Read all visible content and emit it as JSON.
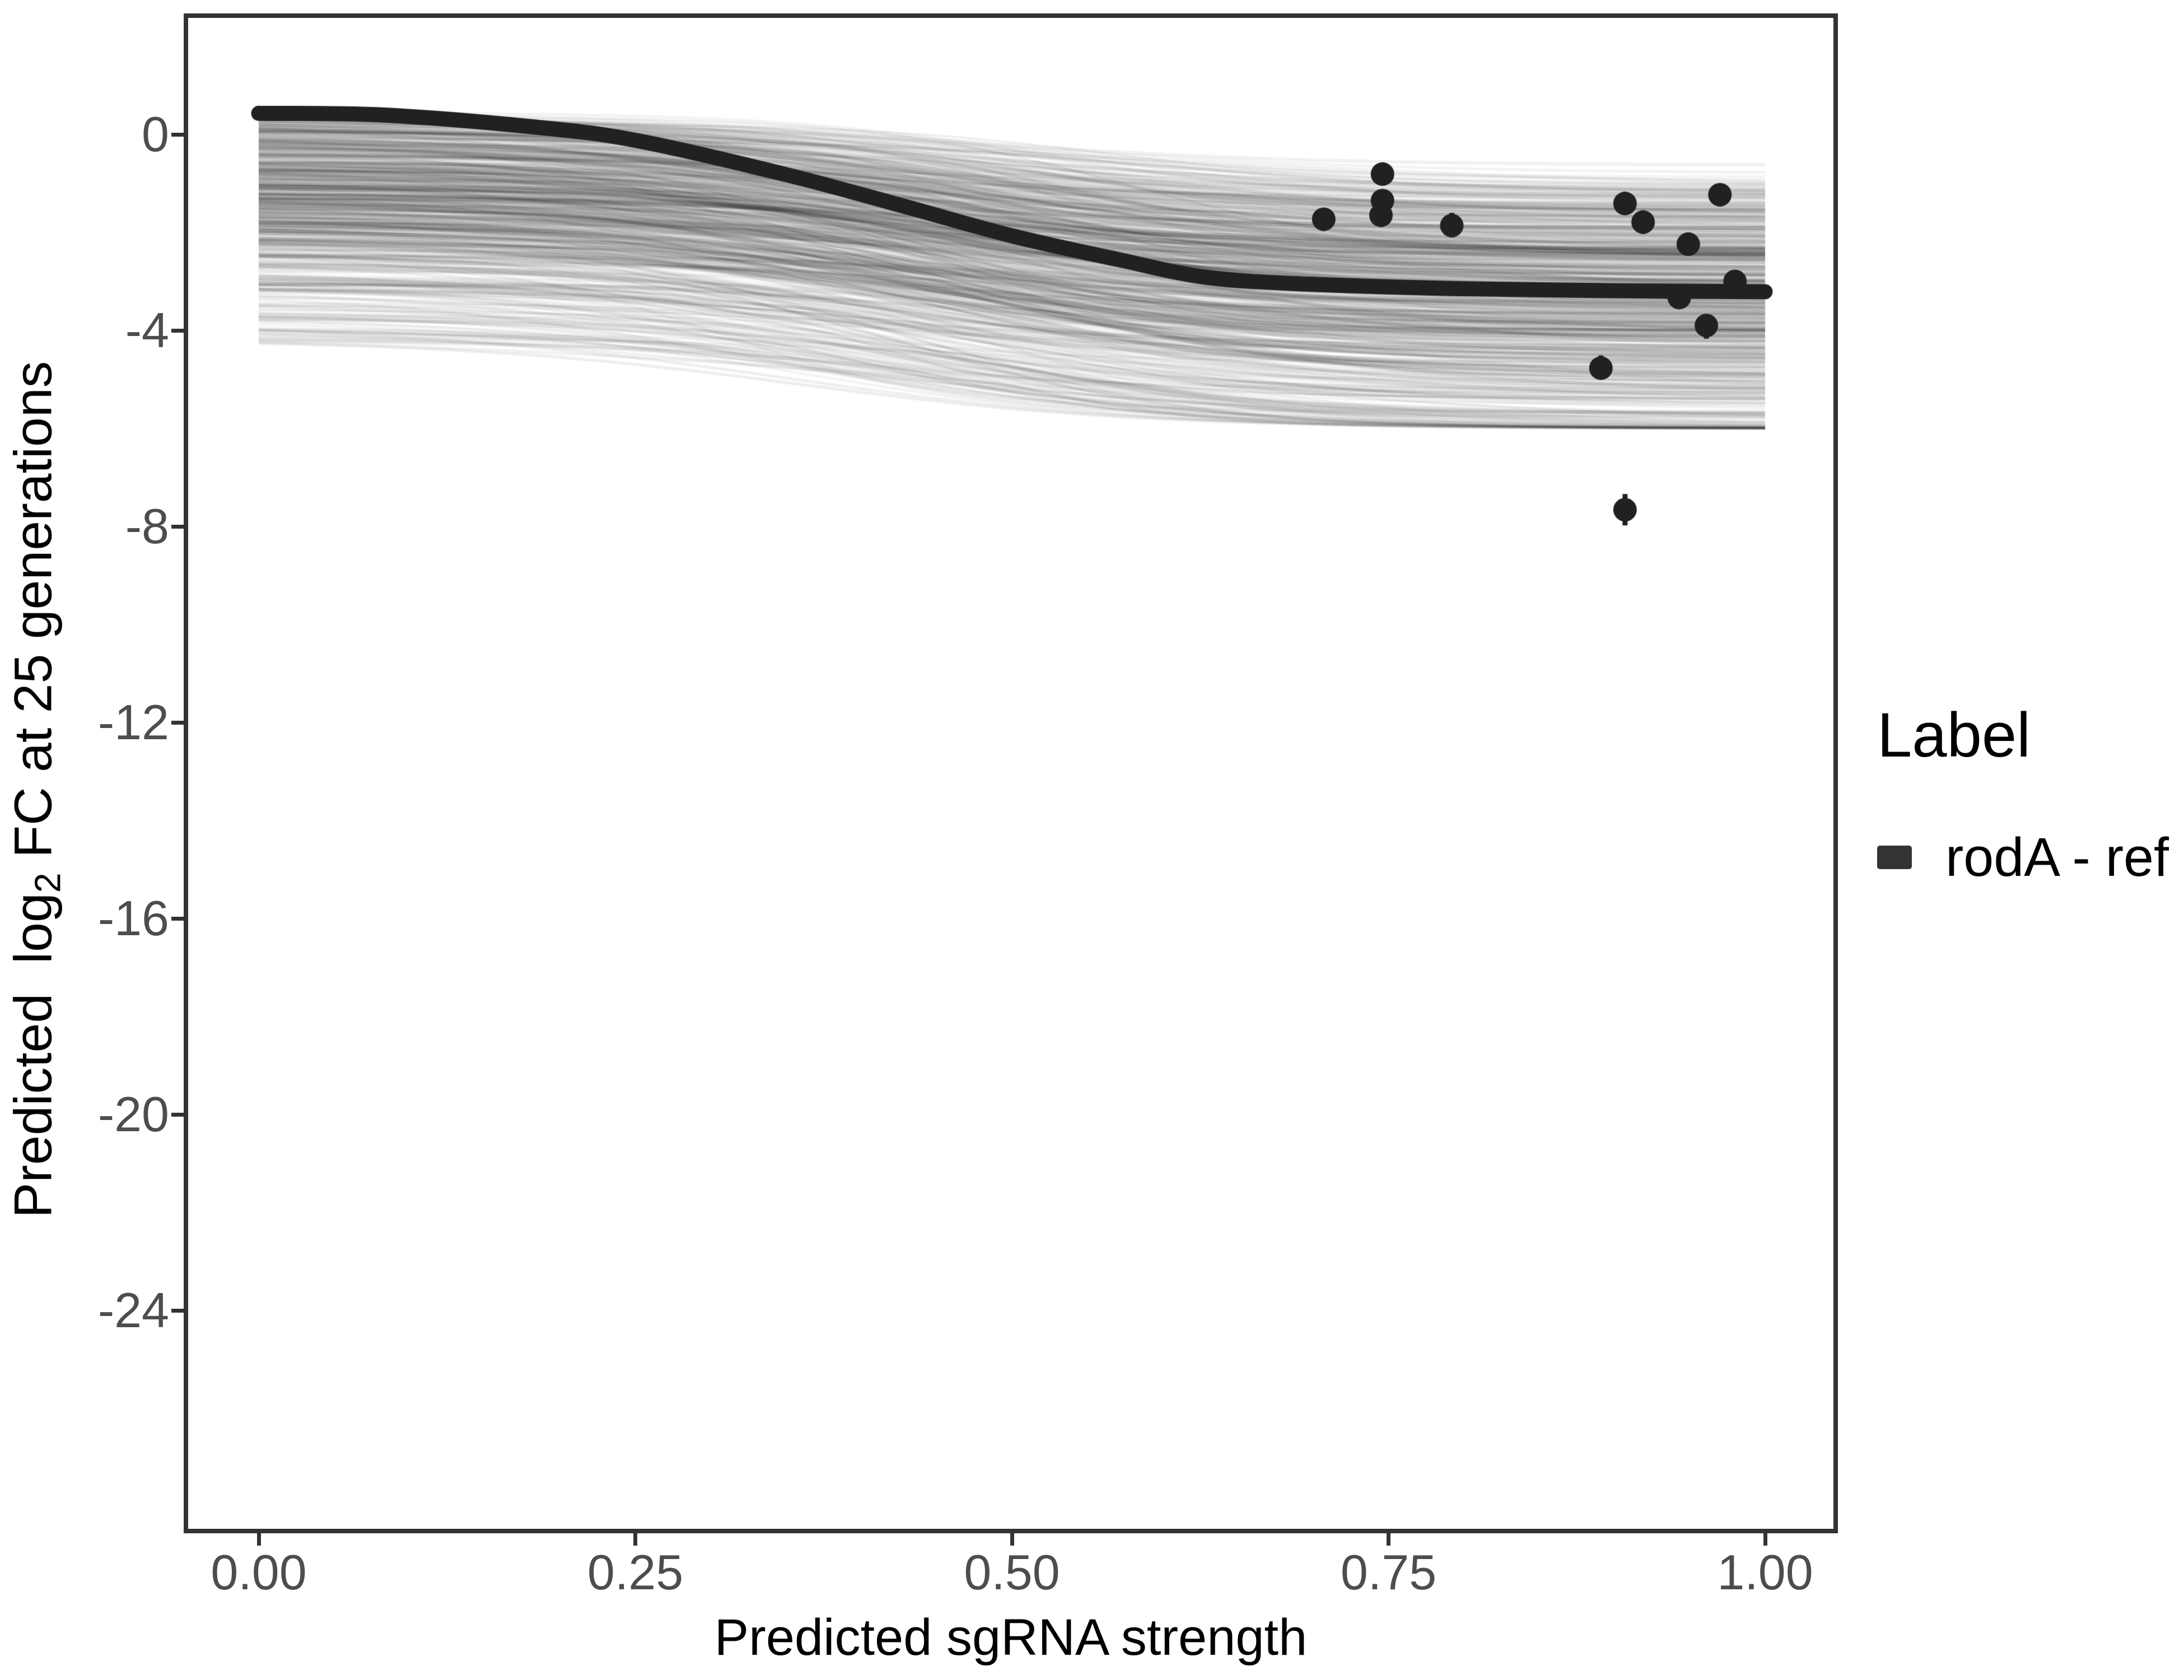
{
  "chart_data": {
    "type": "line",
    "title": "",
    "xlabel": "Predicted sgRNA strength",
    "ylabel": "Predicted log2 FC at 25 generations",
    "ylabel_parts": {
      "prefix": "Predicted  log",
      "sub": "2",
      "suffix": " FC at 25 generations"
    },
    "x_ticks": [
      "0.00",
      "0.25",
      "0.50",
      "0.75",
      "1.00"
    ],
    "x_tick_values": [
      0,
      0.25,
      0.5,
      0.75,
      1
    ],
    "y_ticks": [
      "0",
      "-4",
      "-8",
      "-12",
      "-16",
      "-20",
      "-24"
    ],
    "y_tick_values": [
      0,
      -4,
      -8,
      -12,
      -16,
      -20,
      -24
    ],
    "xlim": [
      -0.048,
      1.047
    ],
    "ylim": [
      -28.5,
      2.42
    ],
    "grid": "off",
    "legend": {
      "position": "right",
      "title": "Label",
      "items": [
        {
          "label": "rodA - ref",
          "color": "#343434"
        }
      ]
    },
    "reference_curve": {
      "name": "rodA - ref",
      "color": "#212121",
      "points": [
        [
          0.0,
          0.43
        ],
        [
          0.08,
          0.4
        ],
        [
          0.18,
          0.16
        ],
        [
          0.25,
          -0.12
        ],
        [
          0.35,
          -0.82
        ],
        [
          0.43,
          -1.48
        ],
        [
          0.5,
          -2.07
        ],
        [
          0.57,
          -2.55
        ],
        [
          0.63,
          -2.92
        ],
        [
          0.7,
          -3.06
        ],
        [
          0.8,
          -3.15
        ],
        [
          0.9,
          -3.19
        ],
        [
          1.0,
          -3.21
        ]
      ]
    },
    "points": [
      {
        "x": 0.707,
        "y": -1.73,
        "ymin": -1.97,
        "ymax": -1.5
      },
      {
        "x": 0.746,
        "y": -0.81,
        "ymin": -1.04,
        "ymax": -0.57
      },
      {
        "x": 0.746,
        "y": -1.35,
        "ymin": -1.6,
        "ymax": -1.12
      },
      {
        "x": 0.745,
        "y": -1.65,
        "ymin": -1.89,
        "ymax": -1.42
      },
      {
        "x": 0.792,
        "y": -1.86,
        "ymin": -2.1,
        "ymax": -1.6
      },
      {
        "x": 0.891,
        "y": -4.77,
        "ymin": -5.0,
        "ymax": -4.51
      },
      {
        "x": 0.907,
        "y": -7.66,
        "ymin": -7.98,
        "ymax": -7.34
      },
      {
        "x": 0.907,
        "y": -1.41,
        "ymin": -1.63,
        "ymax": -1.17
      },
      {
        "x": 0.919,
        "y": -1.79,
        "ymin": -2.03,
        "ymax": -1.55
      },
      {
        "x": 0.949,
        "y": -2.24,
        "ymin": -2.48,
        "ymax": -2.0
      },
      {
        "x": 0.943,
        "y": -3.33,
        "ymin": -3.56,
        "ymax": -3.1
      },
      {
        "x": 0.961,
        "y": -3.9,
        "ymin": -4.17,
        "ymax": -3.68
      },
      {
        "x": 0.97,
        "y": -1.23,
        "ymin": -1.47,
        "ymax": -1.01
      },
      {
        "x": 0.98,
        "y": -3.0,
        "ymin": -3.22,
        "ymax": -2.77
      }
    ],
    "posterior_band": {
      "n_curves": 560,
      "top_range": [
        -4.2,
        0.45
      ],
      "bottom_limit": -6.0,
      "midpoint_mean": 0.45,
      "slope_mean": 9,
      "color": "#000000",
      "alpha": 0.05
    }
  },
  "style_colors": {
    "panel_border": "#333333",
    "tick_text": "#4d4d4d",
    "title_text": "#000000",
    "curve": "#212121"
  }
}
